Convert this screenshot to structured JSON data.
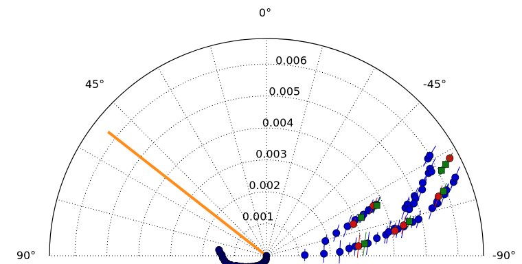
{
  "chart_data": {
    "type": "scatter",
    "projection": "polar-half",
    "zero_location": "top",
    "direction": "clockwise-negative",
    "angle_ticks": [
      "0°",
      "45°",
      "-45°",
      "90°",
      "-90°"
    ],
    "angle_tick_values": [
      0,
      45,
      -45,
      90,
      -90
    ],
    "radial_ticks": [
      "0.001",
      "0.002",
      "0.003",
      "0.004",
      "0.005",
      "0.006"
    ],
    "radial_tick_values": [
      0.001,
      0.002,
      0.003,
      0.004,
      0.005,
      0.006
    ],
    "rlim": [
      0,
      0.0068
    ],
    "grid": true,
    "reference_line": {
      "angle_deg": 52,
      "r": 0.0063,
      "color": "#ff8c1a"
    },
    "colors": {
      "blue": "#0000cc",
      "red": "#cc1111",
      "green": "#117711",
      "navy": "#000066",
      "frame": "#000000"
    },
    "series": [
      {
        "color": "#000066",
        "marker": "circle",
        "points": [
          [
            180.0,
            0.0
          ],
          [
            174.0,
            0.0001
          ],
          [
            171.0,
            0.00014
          ],
          [
            160.0,
            0.0002
          ],
          [
            155.0,
            0.00024
          ],
          [
            150.0,
            0.0003
          ],
          [
            145.0,
            0.00035
          ],
          [
            140.0,
            0.0004
          ],
          [
            135.0,
            0.00045
          ],
          [
            132.0,
            0.0005
          ],
          [
            128.0,
            0.00055
          ],
          [
            125.0,
            0.0006
          ],
          [
            121.0,
            0.00067
          ],
          [
            118.0,
            0.00075
          ],
          [
            114.0,
            0.00083
          ],
          [
            111.0,
            0.00092
          ],
          [
            108.0,
            0.001
          ],
          [
            104.5,
            0.00115
          ],
          [
            101.0,
            0.00125
          ],
          [
            97.0,
            0.00132
          ],
          [
            93.0,
            0.00137
          ],
          [
            89.0,
            0.0014
          ],
          [
            86.0,
            0.00146
          ],
          [
            83.0,
            0.0015
          ]
        ]
      },
      {
        "color": "#0000cc",
        "marker": "circle",
        "points": [
          [
            -76.0,
            0.0019
          ],
          [
            -72.0,
            0.0023
          ],
          [
            -70.0,
            0.0027
          ],
          [
            -68.0,
            0.003
          ],
          [
            -67.0,
            0.0033
          ],
          [
            -66.0,
            0.0035
          ],
          [
            -66.0,
            0.0036
          ],
          [
            -65.0,
            0.0038
          ],
          [
            -71.0,
            0.0046
          ],
          [
            -70.0,
            0.0047
          ],
          [
            -68.0,
            0.005
          ],
          [
            -69.0,
            0.005
          ],
          [
            -72.0,
            0.0047
          ],
          [
            -70.5,
            0.0049
          ],
          [
            -67.0,
            0.0053
          ],
          [
            -65.0,
            0.0054
          ],
          [
            -63.0,
            0.0057
          ],
          [
            -62.0,
            0.0058
          ],
          [
            -63.0,
            0.0058
          ],
          [
            -59.0,
            0.0059
          ],
          [
            -58.5,
            0.006
          ],
          [
            -89.0,
            0.0012
          ],
          [
            -88.0,
            0.0018
          ],
          [
            -87.0,
            0.0023
          ],
          [
            -85.0,
            0.0026
          ],
          [
            -84.0,
            0.0028
          ],
          [
            -83.0,
            0.0032
          ],
          [
            -81.0,
            0.0035
          ],
          [
            -80.0,
            0.0038
          ],
          [
            -79.0,
            0.0039
          ],
          [
            -78.0,
            0.0041
          ],
          [
            -78.5,
            0.0042
          ],
          [
            -78.0,
            0.0044
          ],
          [
            -77.0,
            0.0047
          ],
          [
            -76.5,
            0.0049
          ],
          [
            -74.0,
            0.0054
          ],
          [
            -73.0,
            0.0056
          ],
          [
            -72.5,
            0.0056
          ],
          [
            -71.0,
            0.0059
          ],
          [
            -70.0,
            0.006
          ],
          [
            -68.5,
            0.0063
          ],
          [
            -67.5,
            0.0064
          ]
        ]
      },
      {
        "color": "#cc1111",
        "marker": "circle",
        "points": [
          [
            -70.0,
            0.0029
          ],
          [
            -65.0,
            0.0037
          ],
          [
            -84.0,
            0.0029
          ],
          [
            -79.0,
            0.0041
          ],
          [
            -77.5,
            0.0044
          ],
          [
            -71.0,
            0.0057
          ],
          [
            -62.0,
            0.0065
          ]
        ]
      },
      {
        "color": "#117711",
        "marker": "square",
        "points": [
          [
            -68.0,
            0.0032
          ],
          [
            -65.5,
            0.0038
          ],
          [
            -83.0,
            0.0031
          ],
          [
            -76.5,
            0.0046
          ],
          [
            -70.0,
            0.0059
          ],
          [
            -63.0,
            0.0063
          ],
          [
            -64.0,
            0.0061
          ]
        ]
      }
    ]
  }
}
